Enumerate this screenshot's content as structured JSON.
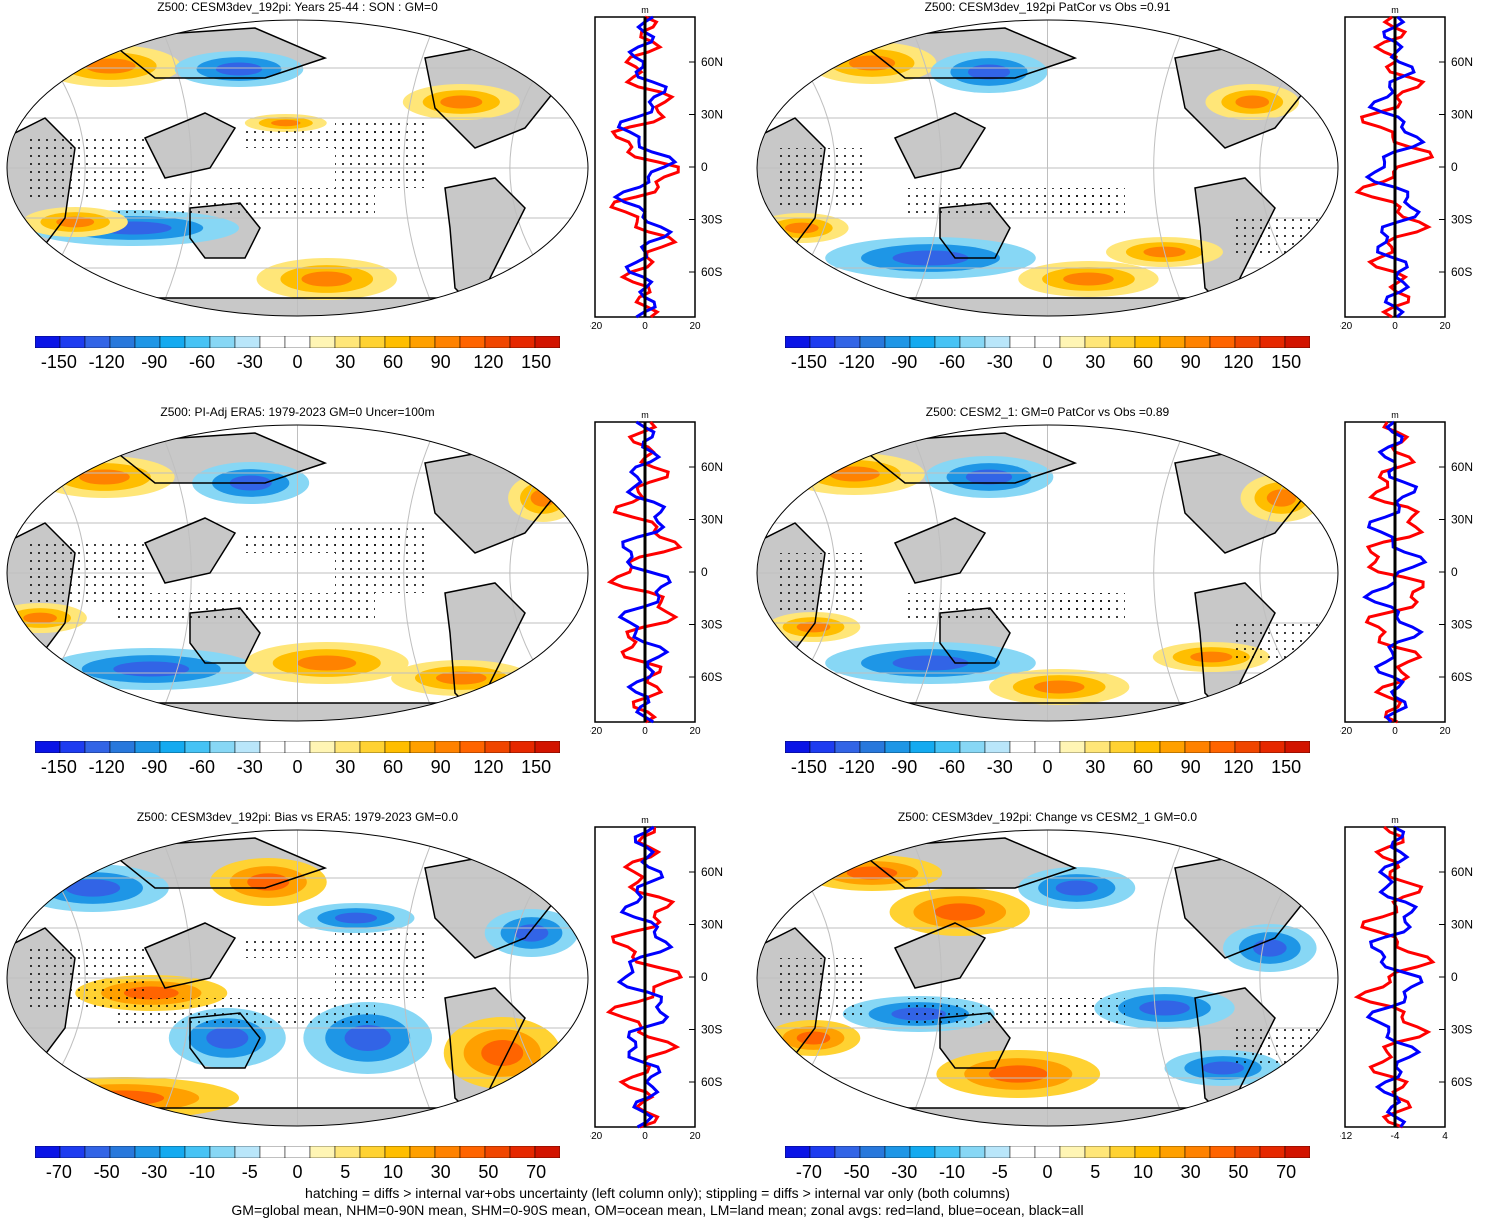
{
  "panels": [
    {
      "title": "Z500: CESM3dev_192pi: Years 25-44 : SON : GM=0",
      "scale": "a",
      "profile": {
        "xticks": [
          "-20",
          "0",
          "20"
        ],
        "unit": "m"
      }
    },
    {
      "title": "Z500: CESM3dev_192pi PatCor vs Obs =0.91",
      "scale": "a",
      "profile": {
        "xticks": [
          "-20",
          "0",
          "20"
        ],
        "unit": "m"
      }
    },
    {
      "title": "Z500: PI-Adj ERA5: 1979-2023 GM=0 Uncer=100m",
      "scale": "a",
      "profile": {
        "xticks": [
          "-20",
          "0",
          "20"
        ],
        "unit": "m"
      }
    },
    {
      "title": "Z500: CESM2_1: GM=0 PatCor vs Obs =0.89",
      "scale": "a",
      "profile": {
        "xticks": [
          "-20",
          "0",
          "20"
        ],
        "unit": "m"
      }
    },
    {
      "title": "Z500: CESM3dev_192pi: Bias vs ERA5: 1979-2023  GM=0.0",
      "scale": "b",
      "profile": {
        "xticks": [
          "-20",
          "0",
          "20"
        ],
        "unit": "m"
      }
    },
    {
      "title": "Z500: CESM3dev_192pi: Change vs CESM2_1 GM=0.0",
      "scale": "b",
      "profile": {
        "xticks": [
          "-12",
          "-4",
          "4"
        ],
        "unit": "m"
      }
    }
  ],
  "lat_ticks": [
    "60N",
    "30N",
    "0",
    "30S",
    "60S"
  ],
  "colorbar_a": {
    "labels": [
      "-150",
      "-120",
      "-90",
      "-60",
      "-30",
      "0",
      "30",
      "60",
      "90",
      "120",
      "150"
    ],
    "colors": [
      "#0a14e6",
      "#1e3cf0",
      "#3264e6",
      "#2878dc",
      "#1e96e6",
      "#14aaf0",
      "#46c3f5",
      "#87d7f5",
      "#b9e6fa",
      "#ffffff",
      "#ffffff",
      "#fff5b4",
      "#ffe678",
      "#ffd232",
      "#ffbe00",
      "#ffa000",
      "#ff8200",
      "#ff6400",
      "#f04600",
      "#e62800",
      "#d21400"
    ]
  },
  "colorbar_b": {
    "labels": [
      "-70",
      "-50",
      "-30",
      "-10",
      "-5",
      "0",
      "5",
      "10",
      "30",
      "50",
      "70"
    ],
    "colors": [
      "#0a14e6",
      "#1e3cf0",
      "#3264e6",
      "#2878dc",
      "#1e96e6",
      "#14aaf0",
      "#46c3f5",
      "#87d7f5",
      "#b9e6fa",
      "#ffffff",
      "#ffffff",
      "#fff5b4",
      "#ffe678",
      "#ffd232",
      "#ffbe00",
      "#ffa000",
      "#ff8200",
      "#ff6400",
      "#f04600",
      "#e62800",
      "#d21400"
    ]
  },
  "footer": {
    "line1": "hatching = diffs > internal var+obs uncertainty (left column only); stippling = diffs > internal var only (both columns)",
    "line2": "GM=global mean, NHM=0-90N mean, SHM=0-90S mean, OM=ocean mean, LM=land mean; zonal avgs: red=land, blue=ocean, black=all"
  },
  "legend_colors": {
    "land": "#ff0000",
    "ocean": "#0000ff",
    "all": "#000000"
  }
}
